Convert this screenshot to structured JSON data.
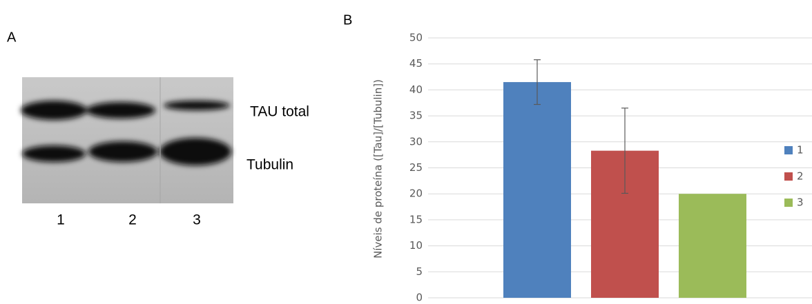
{
  "panel_a": {
    "label": "A",
    "bands": [
      "TAU total",
      "Tubulin"
    ],
    "lanes": [
      "1",
      "2",
      "3"
    ]
  },
  "chart_data": {
    "type": "bar",
    "panel_label": "B",
    "y_label": "Níveis de proteína ([Tau]/[Tubulin])",
    "categories": [
      null
    ],
    "series": [
      {
        "name": "1",
        "color": "#4f81bd",
        "values": [
          41.5
        ],
        "errors": [
          4.3
        ]
      },
      {
        "name": "2",
        "color": "#c0504d",
        "values": [
          28.3
        ],
        "errors": [
          8.2
        ]
      },
      {
        "name": "3",
        "color": "#9bbb59",
        "values": [
          20
        ]
      }
    ],
    "ylim": [
      0,
      50
    ],
    "yticks": [
      0,
      5,
      10,
      15,
      20,
      25,
      30,
      35,
      40,
      45,
      50
    ],
    "grid": true,
    "legend": "right"
  }
}
